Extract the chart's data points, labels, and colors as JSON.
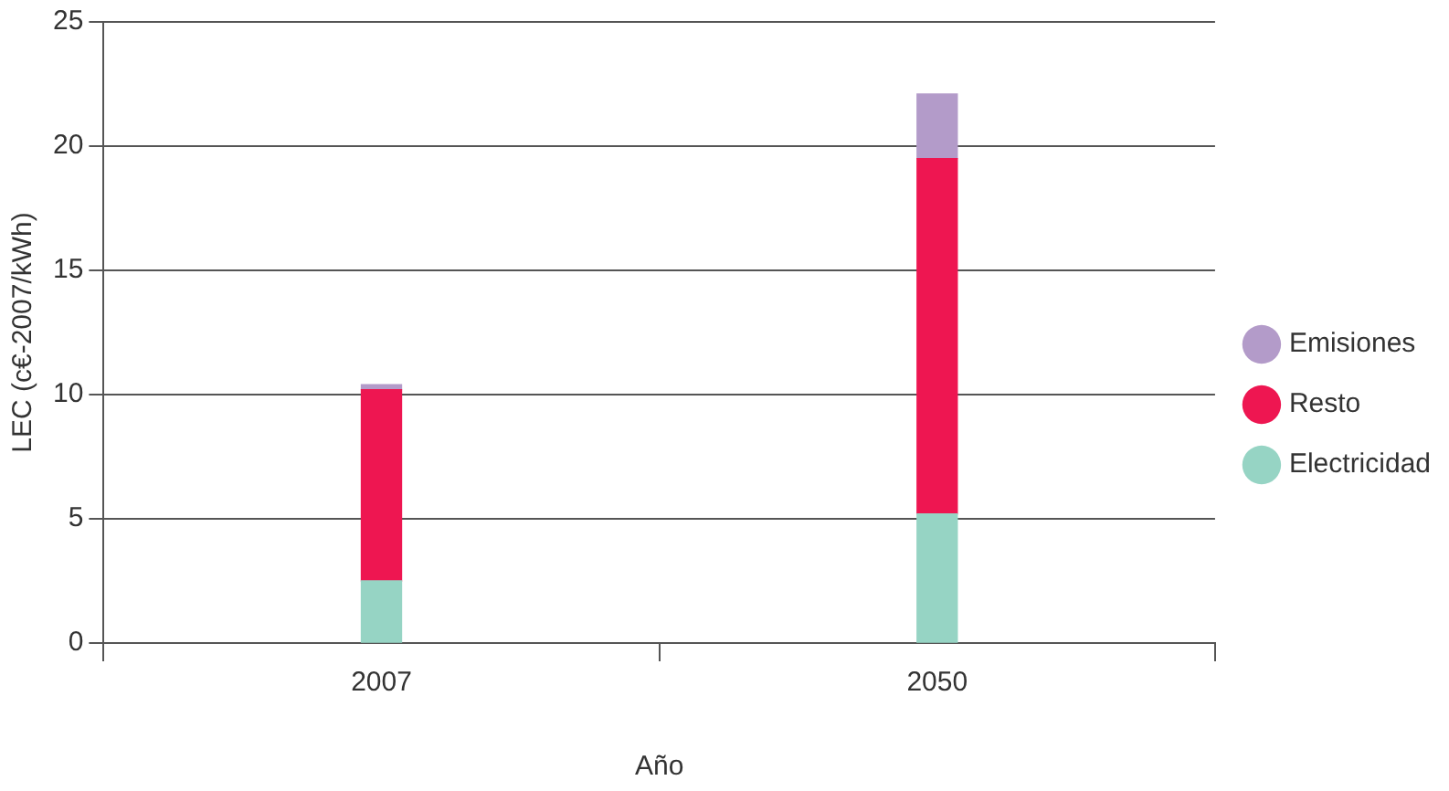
{
  "chart_data": {
    "type": "bar",
    "stacked": true,
    "xlabel": "Año",
    "ylabel": "LEC (c€-2007/kWh)",
    "categories": [
      "2007",
      "2050"
    ],
    "series": [
      {
        "name": "Electricidad",
        "color": "#96d4c4",
        "values": [
          2.5,
          5.2
        ]
      },
      {
        "name": "Resto",
        "color": "#ee1651",
        "values": [
          7.7,
          14.3
        ]
      },
      {
        "name": "Emisiones",
        "color": "#b39bc9",
        "values": [
          0.2,
          2.6
        ]
      }
    ],
    "ylim": [
      0,
      25
    ],
    "yticks": [
      0,
      5,
      10,
      15,
      20,
      25
    ],
    "grid": "y",
    "legend": "right"
  }
}
